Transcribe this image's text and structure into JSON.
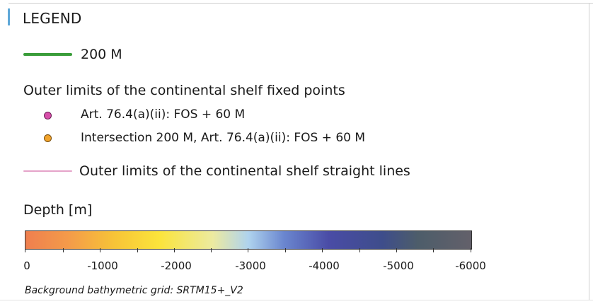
{
  "legend": {
    "title": "LEGEND",
    "line_200m": {
      "label": "200 M",
      "color": "#3a9d3a"
    },
    "fixed_points": {
      "heading": "Outer limits of the continental shelf fixed points",
      "items": [
        {
          "label": "Art. 76.4(a)(ii): FOS + 60 M",
          "color": "#d84faa",
          "icon": "pink-dot-icon"
        },
        {
          "label": "Intersection 200 M, Art. 76.4(a)(ii): FOS + 60 M",
          "color": "#f2a42c",
          "icon": "orange-dot-icon"
        }
      ]
    },
    "straight_lines": {
      "label": "Outer limits of the continental shelf straight lines",
      "color": "#e5a3c9"
    },
    "depth": {
      "heading": "Depth [m]",
      "ticks": [
        "0",
        "-1000",
        "-2000",
        "-3000",
        "-4000",
        "-5000",
        "-6000"
      ]
    },
    "footnote": "Background bathymetric grid: SRTM15+_V2"
  }
}
